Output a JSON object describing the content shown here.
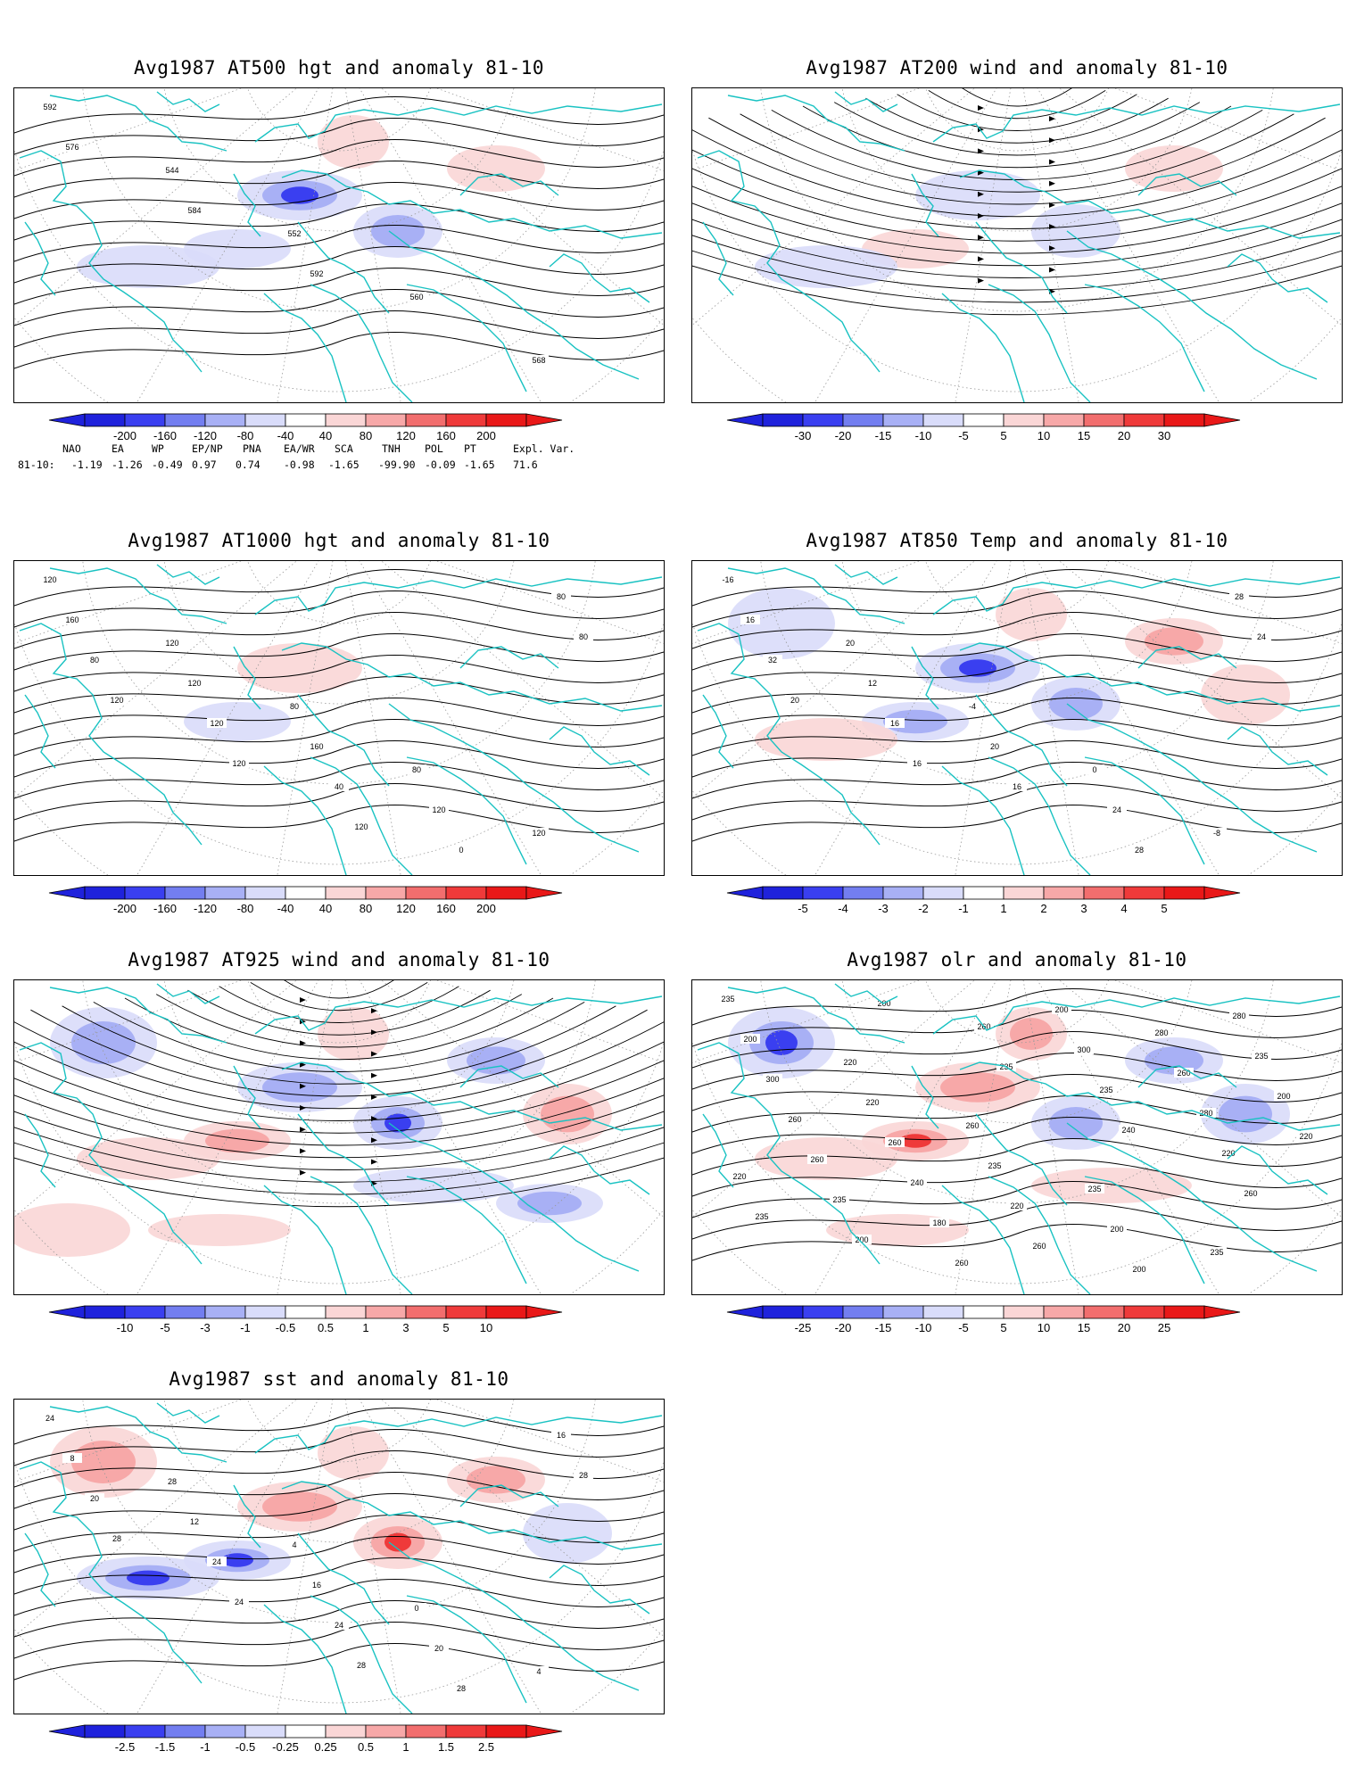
{
  "panels": [
    {
      "id": "p500",
      "title": "Avg1987 AT500 hgt and anomaly 81-10",
      "type": "contour",
      "colorbar": [
        "-200",
        "-160",
        "-120",
        "-80",
        "-40",
        "40",
        "80",
        "120",
        "160",
        "200"
      ],
      "contour_labels": [
        "592",
        "544",
        "552",
        "560",
        "568",
        "576",
        "584",
        "592"
      ],
      "anomalies": [
        {
          "sign": "neg",
          "level": 3
        },
        {
          "sign": "neg",
          "level": 1
        },
        {
          "sign": "neg",
          "level": 2
        },
        {
          "sign": "neg",
          "level": 1
        },
        {
          "sign": "pos",
          "level": 1
        },
        {
          "sign": "pos",
          "level": 1
        }
      ]
    },
    {
      "id": "p200",
      "title": "Avg1987 AT200 wind and anomaly 81-10",
      "type": "stream",
      "colorbar": [
        "-30",
        "-20",
        "-15",
        "-10",
        "-5",
        "5",
        "10",
        "15",
        "20",
        "30"
      ],
      "contour_labels": [],
      "anomalies": [
        {
          "sign": "neg",
          "level": 1
        },
        {
          "sign": "pos",
          "level": 1
        },
        {
          "sign": "neg",
          "level": 1
        },
        {
          "sign": "neg",
          "level": 1
        },
        {
          "sign": "pos",
          "level": 1
        }
      ]
    },
    {
      "id": "p1000",
      "title": "Avg1987 AT1000 hgt and anomaly 81-10",
      "type": "contour",
      "colorbar": [
        "-200",
        "-160",
        "-120",
        "-80",
        "-40",
        "40",
        "80",
        "120",
        "160",
        "200"
      ],
      "contour_labels": [
        "120",
        "120",
        "80",
        "80",
        "120",
        "160",
        "120",
        "160",
        "120",
        "80",
        "80",
        "120",
        "40",
        "0",
        "80",
        "120",
        "120",
        "120"
      ],
      "anomalies": [
        {
          "sign": "pos",
          "level": 1
        },
        {
          "sign": "neg",
          "level": 1
        }
      ]
    },
    {
      "id": "p850",
      "title": "Avg1987 AT850 Temp and anomaly 81-10",
      "type": "contour",
      "colorbar": [
        "-5",
        "-4",
        "-3",
        "-2",
        "-1",
        "1",
        "2",
        "3",
        "4",
        "5"
      ],
      "contour_labels": [
        "-16",
        "20",
        "-4",
        "0",
        "-8",
        "16",
        "12",
        "20",
        "24",
        "28",
        "32",
        "16",
        "16",
        "28",
        "24",
        "20",
        "16"
      ],
      "anomalies": [
        {
          "sign": "neg",
          "level": 3
        },
        {
          "sign": "neg",
          "level": 2
        },
        {
          "sign": "neg",
          "level": 2
        },
        {
          "sign": "pos",
          "level": 1
        },
        {
          "sign": "pos",
          "level": 2
        },
        {
          "sign": "pos",
          "level": 1
        },
        {
          "sign": "neg",
          "level": 1
        },
        {
          "sign": "pos",
          "level": 1
        }
      ]
    },
    {
      "id": "p925",
      "title": "Avg1987 AT925 wind and anomaly 81-10",
      "type": "stream",
      "colorbar": [
        "-10",
        "-5",
        "-3",
        "-1",
        "-0.5",
        "0.5",
        "1",
        "3",
        "5",
        "10"
      ],
      "contour_labels": [],
      "anomalies": [
        {
          "sign": "neg",
          "level": 2
        },
        {
          "sign": "pos",
          "level": 2
        },
        {
          "sign": "neg",
          "level": 3
        },
        {
          "sign": "pos",
          "level": 1
        },
        {
          "sign": "neg",
          "level": 2
        },
        {
          "sign": "pos",
          "level": 1
        },
        {
          "sign": "neg",
          "level": 2
        },
        {
          "sign": "pos",
          "level": 2
        },
        {
          "sign": "neg",
          "level": 1
        },
        {
          "sign": "pos",
          "level": 1
        },
        {
          "sign": "neg",
          "level": 2
        },
        {
          "sign": "pos",
          "level": 1
        }
      ]
    },
    {
      "id": "polr",
      "title": "Avg1987 olr and anomaly 81-10",
      "type": "contour",
      "colorbar": [
        "-25",
        "-20",
        "-15",
        "-10",
        "-5",
        "5",
        "10",
        "15",
        "20",
        "25"
      ],
      "contour_labels": [
        "235",
        "220",
        "260",
        "235",
        "235",
        "200",
        "220",
        "235",
        "200",
        "280",
        "300",
        "260",
        "220",
        "200",
        "235",
        "260",
        "240",
        "260",
        "280",
        "200",
        "260",
        "180",
        "200",
        "260",
        "220",
        "235",
        "260",
        "300",
        "280",
        "220",
        "200",
        "260",
        "235",
        "220",
        "235",
        "200",
        "235",
        "240",
        "260"
      ],
      "anomalies": [
        {
          "sign": "pos",
          "level": 2
        },
        {
          "sign": "pos",
          "level": 3
        },
        {
          "sign": "neg",
          "level": 2
        },
        {
          "sign": "pos",
          "level": 1
        },
        {
          "sign": "neg",
          "level": 2
        },
        {
          "sign": "pos",
          "level": 2
        },
        {
          "sign": "neg",
          "level": 3
        },
        {
          "sign": "neg",
          "level": 2
        },
        {
          "sign": "pos",
          "level": 1
        },
        {
          "sign": "pos",
          "level": 1
        }
      ]
    },
    {
      "id": "psst",
      "title": "Avg1987 sst and anomaly 81-10",
      "type": "contour",
      "colorbar": [
        "-2.5",
        "-1.5",
        "-1",
        "-0.5",
        "-0.25",
        "0.25",
        "0.5",
        "1",
        "1.5",
        "2.5"
      ],
      "contour_labels": [
        "24",
        "28",
        "4",
        "0",
        "4",
        "8",
        "12",
        "16",
        "20",
        "16",
        "20",
        "24",
        "24",
        "28",
        "28",
        "28",
        "24",
        "28"
      ],
      "anomalies": [
        {
          "sign": "pos",
          "level": 2
        },
        {
          "sign": "neg",
          "level": 3
        },
        {
          "sign": "pos",
          "level": 3
        },
        {
          "sign": "neg",
          "level": 3
        },
        {
          "sign": "pos",
          "level": 2
        },
        {
          "sign": "pos",
          "level": 1
        },
        {
          "sign": "pos",
          "level": 2
        },
        {
          "sign": "neg",
          "level": 1
        }
      ]
    }
  ],
  "teleconnections": {
    "headers": [
      "NAO",
      "EA",
      "WP",
      "EP/NP",
      "PNA",
      "EA/WR",
      "SCA",
      "TNH",
      "POL",
      "PT",
      "Expl. Var."
    ],
    "row_label": "81-10:",
    "values": [
      "-1.19",
      "-1.26",
      "-0.49",
      "0.97",
      "0.74",
      "-0.98",
      "-1.65",
      "-99.90",
      "-0.09",
      "-1.65",
      "71.6"
    ]
  },
  "colors": {
    "coast": "#19c2c2",
    "neg": [
      "#d9dcfa",
      "#a8b0f5",
      "#737ef0",
      "#3a3ff0",
      "#1f22dc"
    ],
    "pos": [
      "#fad6d6",
      "#f7a8a8",
      "#f26e6e",
      "#ef3a3a",
      "#e91818"
    ]
  }
}
